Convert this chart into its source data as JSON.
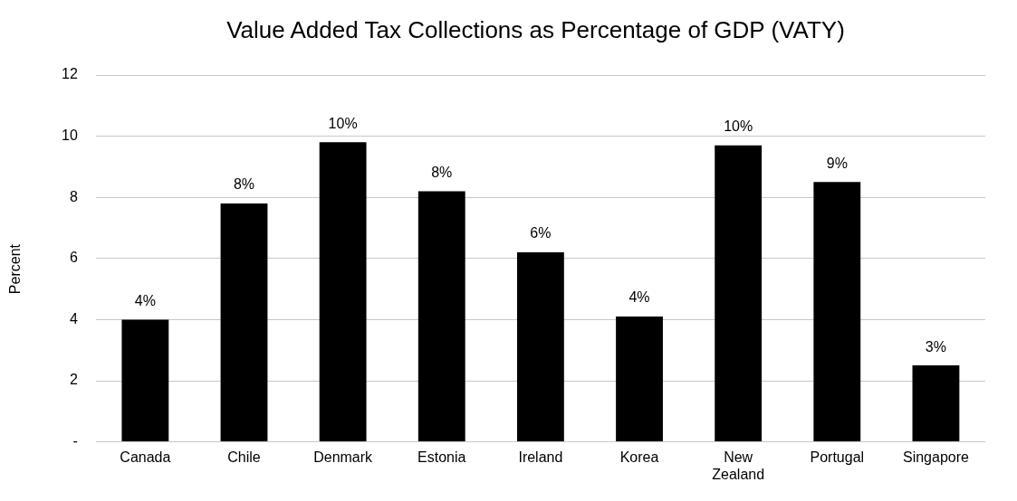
{
  "chart_data": {
    "type": "bar",
    "title": "Value Added Tax Collections as Percentage of GDP (VATY)",
    "ylabel": "Percent",
    "categories": [
      "Canada",
      "Chile",
      "Denmark",
      "Estonia",
      "Ireland",
      "Korea",
      "New Zealand",
      "Portugal",
      "Singapore"
    ],
    "values": [
      4.0,
      7.8,
      9.8,
      8.2,
      6.2,
      4.1,
      9.7,
      8.5,
      2.5
    ],
    "value_labels": [
      "4%",
      "8%",
      "10%",
      "8%",
      "6%",
      "4%",
      "10%",
      "9%",
      "3%"
    ],
    "color": "#000000",
    "ylim": [
      0,
      12
    ],
    "yticks": [
      {
        "value": 0,
        "label": "-"
      },
      2,
      4,
      6,
      8,
      10,
      12
    ],
    "grid": "y"
  }
}
